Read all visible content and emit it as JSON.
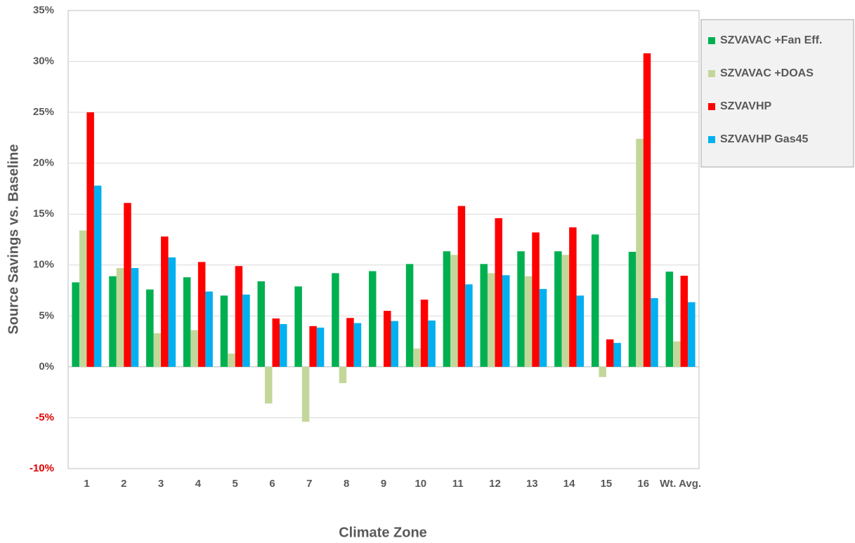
{
  "chart_data": {
    "type": "bar",
    "x_label": "Climate Zone",
    "y_label": "Source Savings vs. Baseline",
    "categories": [
      "1",
      "2",
      "3",
      "4",
      "5",
      "6",
      "7",
      "8",
      "9",
      "10",
      "11",
      "12",
      "13",
      "14",
      "15",
      "16",
      "Wt. Avg."
    ],
    "series": [
      {
        "name": "SZVAVAC +Fan Eff.",
        "color": "#00b050",
        "values": [
          8.3,
          8.9,
          7.6,
          8.8,
          7.0,
          8.4,
          7.9,
          9.2,
          9.4,
          10.1,
          11.35,
          10.1,
          11.35,
          11.35,
          13.0,
          11.3,
          9.35
        ]
      },
      {
        "name": "SZVAVAC +DOAS",
        "color": "#c4d79b",
        "values": [
          13.4,
          9.7,
          3.3,
          3.6,
          1.3,
          -3.6,
          -5.4,
          -1.6,
          0,
          1.8,
          11.0,
          9.2,
          8.9,
          11.0,
          -1.0,
          22.4,
          2.5
        ]
      },
      {
        "name": "SZVAVHP",
        "color": "#ff0000",
        "values": [
          25.0,
          16.1,
          12.8,
          10.3,
          9.9,
          4.75,
          4.0,
          4.8,
          5.5,
          6.6,
          15.8,
          14.6,
          13.2,
          13.7,
          2.7,
          30.8,
          8.95
        ]
      },
      {
        "name": "SZVAVHP Gas45",
        "color": "#00b0f0",
        "values": [
          17.8,
          9.7,
          10.75,
          7.4,
          7.1,
          4.2,
          3.85,
          4.3,
          4.5,
          4.55,
          8.1,
          9.0,
          7.65,
          7.0,
          2.35,
          6.75,
          6.35
        ]
      }
    ],
    "ylim": [
      -10,
      35
    ],
    "yticks": [
      {
        "value": -10,
        "label": "-10%"
      },
      {
        "value": -5,
        "label": "-5%"
      },
      {
        "value": 0,
        "label": "0%"
      },
      {
        "value": 5,
        "label": "5%"
      },
      {
        "value": 10,
        "label": "10%"
      },
      {
        "value": 15,
        "label": "15%"
      },
      {
        "value": 20,
        "label": "20%"
      },
      {
        "value": 25,
        "label": "25%"
      },
      {
        "value": 30,
        "label": "30%"
      },
      {
        "value": 35,
        "label": "35%"
      }
    ],
    "negative_tick_color": "#e00000",
    "grid": true,
    "legend_position": "right"
  }
}
